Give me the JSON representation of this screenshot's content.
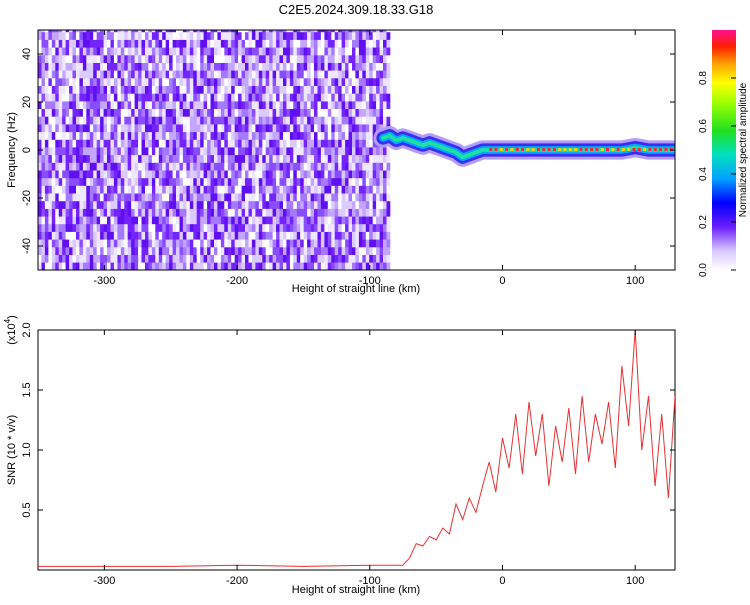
{
  "title": "C2E5.2024.309.18.33.G18",
  "chart_data": [
    {
      "type": "heatmap",
      "xlabel": "Height of straight line (km)",
      "ylabel": "Frequency (Hz)",
      "xlim": [
        -350,
        130
      ],
      "ylim": [
        -50,
        50
      ],
      "x_ticks": [
        -300,
        -200,
        -100,
        0,
        100
      ],
      "y_ticks": [
        -40,
        -20,
        0,
        20,
        40
      ],
      "noise_region_x": [
        -350,
        -87
      ],
      "signal_trace": {
        "x": [
          -90,
          -85,
          -80,
          -75,
          -70,
          -65,
          -60,
          -55,
          -50,
          -45,
          -40,
          -35,
          -30,
          -25,
          -20,
          -15,
          -10,
          -5,
          0,
          10,
          20,
          30,
          40,
          50,
          60,
          70,
          80,
          90,
          100,
          110,
          120,
          130
        ],
        "y": [
          5,
          6,
          4,
          5,
          4,
          3,
          2,
          3,
          2,
          1,
          0,
          -1,
          -3,
          -2,
          -1,
          0,
          0,
          0,
          0,
          0,
          0,
          0,
          0,
          0,
          0,
          0,
          0,
          0,
          1,
          0,
          0,
          0
        ],
        "peak_from": -10
      },
      "colorbar": {
        "label": "Normalized spectral amplitude",
        "ticks": [
          "0.0",
          "0.2",
          "0.4",
          "0.6",
          "0.8"
        ],
        "range": [
          0,
          1
        ]
      }
    },
    {
      "type": "line",
      "xlabel": "Height of straight line (km)",
      "ylabel": "SNR (10 * v/v)",
      "exponent_label": "(x10",
      "exponent_power": "4",
      "exponent_close": ")",
      "xlim": [
        -350,
        130
      ],
      "ylim": [
        0,
        2.0
      ],
      "x_ticks": [
        -300,
        -200,
        -100,
        0,
        100
      ],
      "y_ticks": [
        "0.5",
        "1.0",
        "1.5",
        "2.0"
      ],
      "series": [
        {
          "color": "#e83030",
          "x": [
            -350,
            -300,
            -250,
            -200,
            -150,
            -100,
            -75,
            -70,
            -65,
            -60,
            -55,
            -50,
            -45,
            -40,
            -35,
            -30,
            -25,
            -20,
            -15,
            -10,
            -5,
            0,
            5,
            10,
            15,
            20,
            25,
            30,
            35,
            40,
            45,
            50,
            55,
            60,
            65,
            70,
            75,
            80,
            85,
            90,
            95,
            100,
            105,
            110,
            115,
            120,
            125,
            130
          ],
          "y": [
            0.03,
            0.03,
            0.03,
            0.04,
            0.03,
            0.04,
            0.04,
            0.1,
            0.22,
            0.2,
            0.28,
            0.25,
            0.35,
            0.3,
            0.55,
            0.42,
            0.6,
            0.48,
            0.7,
            0.9,
            0.65,
            1.1,
            0.85,
            1.3,
            0.8,
            1.4,
            0.95,
            1.3,
            0.7,
            1.2,
            0.9,
            1.35,
            0.8,
            1.45,
            0.9,
            1.3,
            1.05,
            1.4,
            0.85,
            1.7,
            1.2,
            2.0,
            1.0,
            1.45,
            0.7,
            1.3,
            0.6,
            1.45
          ]
        }
      ]
    }
  ]
}
